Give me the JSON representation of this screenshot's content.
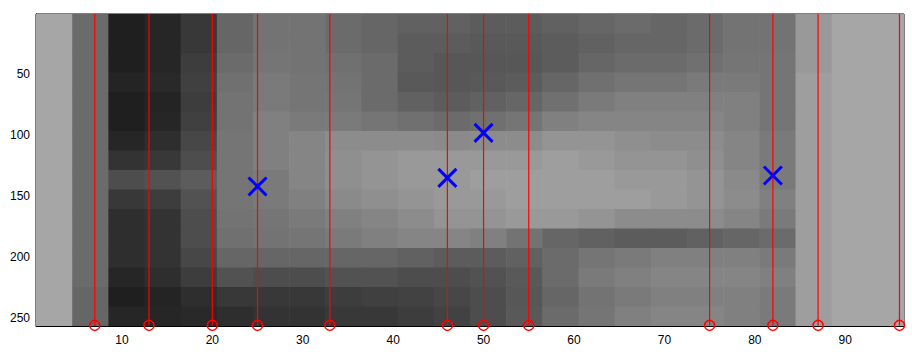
{
  "chart_data": {
    "type": "heatmap",
    "xlim": [
      0.5,
      96.5
    ],
    "ylim": [
      0.5,
      256.5
    ],
    "xticks": [
      10,
      20,
      30,
      40,
      50,
      60,
      70,
      80,
      90
    ],
    "yticks": [
      50,
      100,
      150,
      200,
      250
    ],
    "grid": false,
    "heatmap": {
      "x_edges": [
        0.5,
        4.5,
        8.5,
        12.5,
        16.5,
        20.5,
        24.5,
        28.5,
        32.5,
        36.5,
        40.5,
        44.5,
        48.5,
        52.5,
        56.5,
        60.5,
        64.5,
        68.5,
        72.5,
        76.5,
        80.5,
        84.5,
        88.5,
        92.5,
        96.5
      ],
      "y_edges": [
        0.5,
        16.5,
        32.5,
        48.5,
        64.5,
        80.5,
        96.5,
        112.5,
        128.5,
        144.5,
        160.5,
        176.5,
        192.5,
        208.5,
        224.5,
        240.5,
        256.5
      ],
      "range": [
        0,
        1
      ],
      "values": [
        [
          0.65,
          0.42,
          0.12,
          0.15,
          0.22,
          0.4,
          0.45,
          0.45,
          0.42,
          0.4,
          0.38,
          0.38,
          0.36,
          0.36,
          0.38,
          0.4,
          0.42,
          0.4,
          0.42,
          0.45,
          0.45,
          0.6,
          0.65,
          0.65
        ],
        [
          0.65,
          0.42,
          0.12,
          0.15,
          0.22,
          0.4,
          0.45,
          0.45,
          0.42,
          0.4,
          0.36,
          0.36,
          0.35,
          0.35,
          0.36,
          0.38,
          0.4,
          0.4,
          0.42,
          0.45,
          0.45,
          0.6,
          0.65,
          0.65
        ],
        [
          0.65,
          0.42,
          0.12,
          0.15,
          0.24,
          0.42,
          0.46,
          0.45,
          0.44,
          0.42,
          0.36,
          0.34,
          0.34,
          0.34,
          0.36,
          0.4,
          0.42,
          0.42,
          0.44,
          0.46,
          0.46,
          0.6,
          0.65,
          0.65
        ],
        [
          0.65,
          0.42,
          0.14,
          0.16,
          0.25,
          0.44,
          0.48,
          0.46,
          0.45,
          0.42,
          0.35,
          0.34,
          0.35,
          0.36,
          0.4,
          0.44,
          0.46,
          0.46,
          0.48,
          0.48,
          0.46,
          0.62,
          0.65,
          0.65
        ],
        [
          0.65,
          0.42,
          0.12,
          0.14,
          0.24,
          0.45,
          0.48,
          0.46,
          0.46,
          0.42,
          0.38,
          0.36,
          0.38,
          0.4,
          0.44,
          0.48,
          0.5,
          0.5,
          0.5,
          0.5,
          0.46,
          0.62,
          0.65,
          0.65
        ],
        [
          0.65,
          0.42,
          0.12,
          0.15,
          0.25,
          0.45,
          0.5,
          0.48,
          0.48,
          0.46,
          0.44,
          0.42,
          0.44,
          0.46,
          0.5,
          0.52,
          0.52,
          0.52,
          0.52,
          0.5,
          0.46,
          0.62,
          0.65,
          0.65
        ],
        [
          0.65,
          0.42,
          0.15,
          0.18,
          0.28,
          0.46,
          0.5,
          0.52,
          0.55,
          0.55,
          0.55,
          0.54,
          0.55,
          0.55,
          0.58,
          0.58,
          0.56,
          0.55,
          0.55,
          0.52,
          0.48,
          0.62,
          0.65,
          0.65
        ],
        [
          0.65,
          0.42,
          0.2,
          0.22,
          0.3,
          0.46,
          0.5,
          0.52,
          0.56,
          0.58,
          0.6,
          0.6,
          0.6,
          0.6,
          0.62,
          0.6,
          0.58,
          0.58,
          0.56,
          0.52,
          0.48,
          0.62,
          0.65,
          0.65
        ],
        [
          0.65,
          0.42,
          0.3,
          0.32,
          0.36,
          0.46,
          0.48,
          0.52,
          0.56,
          0.58,
          0.6,
          0.6,
          0.62,
          0.62,
          0.62,
          0.62,
          0.6,
          0.6,
          0.58,
          0.54,
          0.48,
          0.62,
          0.65,
          0.65
        ],
        [
          0.65,
          0.42,
          0.22,
          0.24,
          0.32,
          0.46,
          0.48,
          0.5,
          0.54,
          0.56,
          0.58,
          0.6,
          0.6,
          0.62,
          0.62,
          0.62,
          0.62,
          0.6,
          0.58,
          0.55,
          0.5,
          0.62,
          0.65,
          0.65
        ],
        [
          0.65,
          0.42,
          0.18,
          0.2,
          0.3,
          0.45,
          0.46,
          0.48,
          0.5,
          0.52,
          0.55,
          0.58,
          0.58,
          0.6,
          0.6,
          0.58,
          0.55,
          0.55,
          0.55,
          0.52,
          0.48,
          0.62,
          0.65,
          0.65
        ],
        [
          0.65,
          0.42,
          0.18,
          0.2,
          0.3,
          0.44,
          0.45,
          0.46,
          0.48,
          0.5,
          0.52,
          0.52,
          0.5,
          0.45,
          0.4,
          0.38,
          0.36,
          0.36,
          0.38,
          0.4,
          0.42,
          0.62,
          0.65,
          0.65
        ],
        [
          0.65,
          0.42,
          0.18,
          0.2,
          0.28,
          0.4,
          0.4,
          0.4,
          0.4,
          0.4,
          0.38,
          0.36,
          0.36,
          0.38,
          0.42,
          0.46,
          0.48,
          0.5,
          0.5,
          0.5,
          0.48,
          0.62,
          0.65,
          0.65
        ],
        [
          0.65,
          0.42,
          0.15,
          0.18,
          0.24,
          0.32,
          0.3,
          0.3,
          0.32,
          0.32,
          0.3,
          0.3,
          0.32,
          0.35,
          0.42,
          0.48,
          0.5,
          0.52,
          0.52,
          0.52,
          0.5,
          0.62,
          0.65,
          0.65
        ],
        [
          0.65,
          0.4,
          0.12,
          0.14,
          0.18,
          0.22,
          0.22,
          0.22,
          0.24,
          0.25,
          0.26,
          0.28,
          0.3,
          0.34,
          0.4,
          0.45,
          0.48,
          0.5,
          0.5,
          0.5,
          0.48,
          0.62,
          0.65,
          0.65
        ],
        [
          0.65,
          0.4,
          0.15,
          0.15,
          0.16,
          0.18,
          0.2,
          0.2,
          0.22,
          0.22,
          0.24,
          0.26,
          0.3,
          0.35,
          0.42,
          0.46,
          0.5,
          0.52,
          0.52,
          0.5,
          0.48,
          0.62,
          0.65,
          0.65
        ]
      ]
    },
    "series": [
      {
        "type": "stem",
        "color": "#ff0000",
        "marker": "circle",
        "x": [
          7,
          13,
          20,
          25,
          33,
          46,
          50,
          55,
          75,
          82,
          87,
          96
        ],
        "values": [
          256,
          256,
          256,
          256,
          256,
          256,
          256,
          256,
          256,
          256,
          256,
          256
        ]
      },
      {
        "type": "scatter",
        "color": "#0000ff",
        "marker": "x",
        "x": [
          25,
          46,
          50,
          82
        ],
        "values": [
          142,
          135,
          98,
          133
        ]
      }
    ]
  }
}
